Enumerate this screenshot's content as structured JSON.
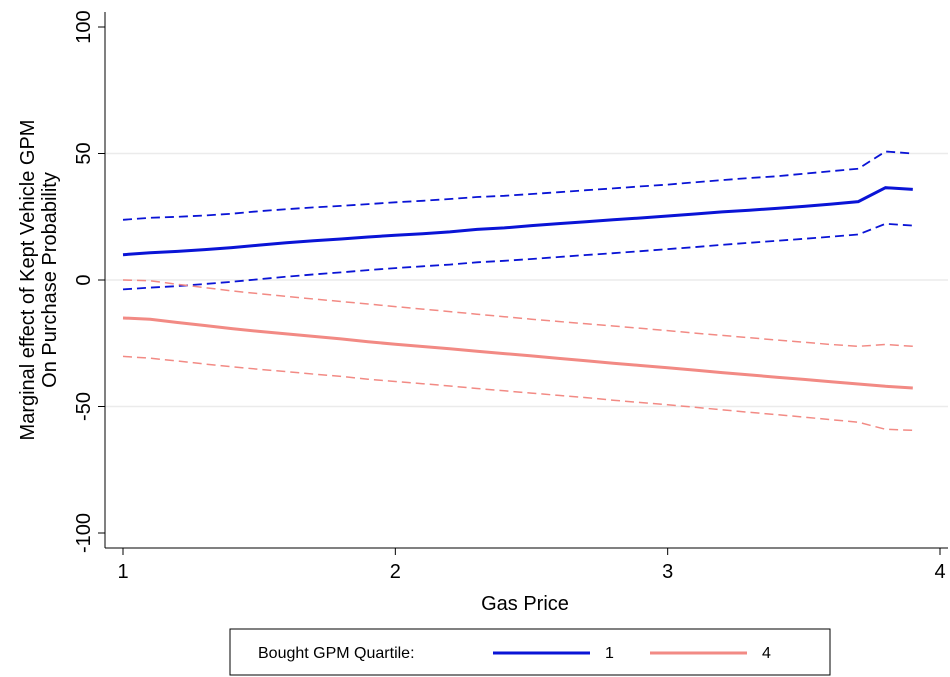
{
  "chart_data": {
    "type": "line",
    "xlabel": "Gas Price",
    "ylabel_lines": [
      "Marginal effect of Kept Vehicle GPM",
      "On Purchase Probability"
    ],
    "xlim": [
      1,
      4
    ],
    "ylim": [
      -100,
      100
    ],
    "x_ticks": [
      1,
      2,
      3,
      4
    ],
    "y_ticks": [
      -100,
      -50,
      0,
      50,
      100
    ],
    "grid": true,
    "legend": {
      "title": "Bought GPM Quartile:",
      "placement": "bottom",
      "entries": [
        {
          "label": "1",
          "color": "#0a14d6"
        },
        {
          "label": "4",
          "color": "#f28a84"
        }
      ]
    },
    "x": [
      1.0,
      1.1,
      1.2,
      1.3,
      1.4,
      1.5,
      1.6,
      1.7,
      1.8,
      1.9,
      2.0,
      2.1,
      2.2,
      2.3,
      2.4,
      2.5,
      2.6,
      2.7,
      2.8,
      2.9,
      3.0,
      3.1,
      3.2,
      3.3,
      3.4,
      3.5,
      3.6,
      3.7,
      3.8,
      3.9
    ],
    "series": [
      {
        "legend_label": "1",
        "color": "#0a14d6",
        "estimate": [
          10.0,
          10.8,
          11.3,
          12.0,
          12.8,
          13.8,
          14.7,
          15.5,
          16.2,
          17.0,
          17.7,
          18.3,
          19.0,
          20.0,
          20.6,
          21.5,
          22.3,
          23.0,
          23.8,
          24.5,
          25.3,
          26.1,
          26.9,
          27.6,
          28.3,
          29.1,
          30.0,
          31.0,
          36.5,
          35.8
        ],
        "ci_upper": [
          23.8,
          24.6,
          25.0,
          25.5,
          26.2,
          27.2,
          28.0,
          28.7,
          29.3,
          30.0,
          30.7,
          31.3,
          32.0,
          32.8,
          33.3,
          34.0,
          34.7,
          35.5,
          36.2,
          37.0,
          37.7,
          38.6,
          39.5,
          40.3,
          41.0,
          42.0,
          43.0,
          44.0,
          50.8,
          50.0
        ],
        "ci_lower": [
          -3.7,
          -3.0,
          -2.4,
          -1.6,
          -0.7,
          0.3,
          1.3,
          2.2,
          3.0,
          3.9,
          4.7,
          5.4,
          6.1,
          7.0,
          7.6,
          8.3,
          9.1,
          9.9,
          10.6,
          11.4,
          12.2,
          13.0,
          13.9,
          14.7,
          15.5,
          16.3,
          17.1,
          18.0,
          22.2,
          21.5
        ]
      },
      {
        "legend_label": "4",
        "color": "#f28a84",
        "estimate": [
          -15.0,
          -15.5,
          -16.8,
          -18.0,
          -19.2,
          -20.3,
          -21.3,
          -22.3,
          -23.3,
          -24.4,
          -25.4,
          -26.3,
          -27.2,
          -28.2,
          -29.1,
          -30.0,
          -31.0,
          -31.9,
          -32.9,
          -33.8,
          -34.7,
          -35.6,
          -36.6,
          -37.5,
          -38.4,
          -39.3,
          -40.2,
          -41.1,
          -42.0,
          -42.7
        ],
        "ci_upper": [
          0.0,
          -0.3,
          -1.7,
          -3.0,
          -4.3,
          -5.4,
          -6.5,
          -7.5,
          -8.5,
          -9.5,
          -10.5,
          -11.5,
          -12.5,
          -13.5,
          -14.5,
          -15.5,
          -16.4,
          -17.3,
          -18.2,
          -19.1,
          -20.0,
          -21.0,
          -21.9,
          -22.8,
          -23.7,
          -24.6,
          -25.5,
          -26.2,
          -25.5,
          -26.2
        ],
        "ci_lower": [
          -30.2,
          -30.9,
          -32.0,
          -33.2,
          -34.3,
          -35.3,
          -36.2,
          -37.2,
          -38.1,
          -39.2,
          -40.1,
          -41.0,
          -41.9,
          -42.9,
          -43.8,
          -44.7,
          -45.6,
          -46.5,
          -47.5,
          -48.4,
          -49.3,
          -50.3,
          -51.3,
          -52.3,
          -53.2,
          -54.2,
          -55.2,
          -56.2,
          -59.0,
          -59.4
        ]
      }
    ]
  }
}
